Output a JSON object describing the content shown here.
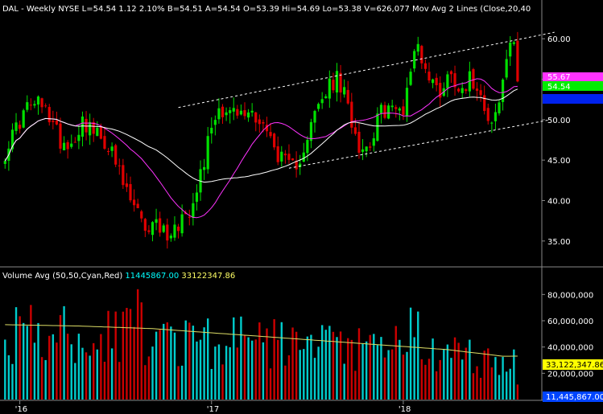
{
  "header": {
    "symbol": "DAL",
    "interval": "Weekly",
    "exchange": "NYSE",
    "last": "L=54.54",
    "change": "1.12",
    "change_pct": "2.10%",
    "bid": "B=54.51",
    "ask": "A=54.54",
    "open": "O=53.39",
    "high": "Hi=54.69",
    "low": "Lo=53.38",
    "volume": "V=626,077",
    "study": "Mov Avg 2 Lines (Close,20,40"
  },
  "volume_header": {
    "label": "Volume Avg (50,50,Cyan,Red)",
    "value_cyan": "11445867.00",
    "value_yellow": "33122347.86"
  },
  "price_tags": [
    {
      "text": "55.67",
      "color": "#ff33ff"
    },
    {
      "text": "54.54",
      "color": "#00ee00"
    },
    {
      "text": "",
      "color": "#0022ee"
    }
  ],
  "volume_tags": [
    {
      "text": "33,122,347.86",
      "color": "#ffff00"
    },
    {
      "text": "11,445,867.00",
      "color": "#0044ff"
    }
  ],
  "colors": {
    "up": "#00e000",
    "down": "#e00000",
    "ma20": "#ff33ff",
    "ma40": "#ffffff",
    "vol_cyan": "#00cccc",
    "vol_red": "#cc0000",
    "vol_avg": "#dddd66",
    "trendline": "#ffffff",
    "header_cyan": "#00ffff",
    "header_yellow": "#ffff66"
  },
  "chart_data": [
    {
      "type": "candlestick",
      "title": "",
      "ylim": [
        32,
        63
      ],
      "yticks": [
        35,
        40,
        45,
        50,
        55,
        60
      ],
      "ytick_labels": [
        "35.00",
        "40.00",
        "45.00",
        "50.00",
        "55.00",
        "60.00"
      ],
      "xticks": [
        {
          "index": 4,
          "label": "'16"
        },
        {
          "index": 56,
          "label": "'17"
        },
        {
          "index": 108,
          "label": "'18"
        }
      ],
      "grid": false,
      "num_bars": 140,
      "anchors": [
        [
          0,
          46.0
        ],
        [
          3,
          49.0
        ],
        [
          6,
          51.5
        ],
        [
          9,
          52.0
        ],
        [
          12,
          50.5
        ],
        [
          15,
          47.5
        ],
        [
          18,
          47.0
        ],
        [
          21,
          50.0
        ],
        [
          24,
          48.5
        ],
        [
          26,
          47.5
        ],
        [
          28,
          47.0
        ],
        [
          30,
          44.5
        ],
        [
          32,
          42.0
        ],
        [
          34,
          40.0
        ],
        [
          36,
          38.5
        ],
        [
          38,
          35.5
        ],
        [
          40,
          38.0
        ],
        [
          42,
          36.5
        ],
        [
          44,
          36.0
        ],
        [
          46,
          36.5
        ],
        [
          48,
          38.0
        ],
        [
          50,
          39.0
        ],
        [
          52,
          42.0
        ],
        [
          54,
          45.0
        ],
        [
          56,
          49.5
        ],
        [
          58,
          51.5
        ],
        [
          61,
          51.0
        ],
        [
          64,
          50.5
        ],
        [
          67,
          51.0
        ],
        [
          70,
          49.5
        ],
        [
          73,
          46.5
        ],
        [
          76,
          44.5
        ],
        [
          78,
          44.0
        ],
        [
          80,
          45.5
        ],
        [
          82,
          48.0
        ],
        [
          84,
          50.5
        ],
        [
          86,
          52.5
        ],
        [
          88,
          54.0
        ],
        [
          90,
          55.0
        ],
        [
          92,
          53.0
        ],
        [
          94,
          50.0
        ],
        [
          96,
          47.0
        ],
        [
          98,
          46.5
        ],
        [
          100,
          48.5
        ],
        [
          102,
          51.0
        ],
        [
          104,
          51.5
        ],
        [
          106,
          51.0
        ],
        [
          108,
          51.5
        ],
        [
          110,
          56.5
        ],
        [
          112,
          59.5
        ],
        [
          114,
          56.0
        ],
        [
          116,
          54.5
        ],
        [
          118,
          53.5
        ],
        [
          120,
          55.5
        ],
        [
          122,
          55.0
        ],
        [
          124,
          54.0
        ],
        [
          126,
          55.0
        ],
        [
          128,
          54.5
        ],
        [
          130,
          52.0
        ],
        [
          132,
          49.5
        ],
        [
          134,
          52.0
        ],
        [
          136,
          57.5
        ],
        [
          137,
          59.5
        ],
        [
          138,
          58.5
        ],
        [
          139,
          55.0
        ],
        [
          140,
          53.0
        ],
        [
          141,
          54.0
        ],
        [
          143,
          54.54
        ]
      ],
      "series": [
        {
          "name": "Mov Avg 20",
          "period": 20,
          "color": "#ff33ff"
        },
        {
          "name": "Mov Avg 40",
          "period": 40,
          "color": "#ffffff"
        }
      ],
      "trendlines": [
        {
          "from": [
            47,
            51.5
          ],
          "to": [
            149,
            60.8
          ]
        },
        {
          "from": [
            77,
            44.0
          ],
          "to": [
            148,
            50.0
          ]
        }
      ]
    },
    {
      "type": "bar",
      "title": "Volume Avg (50,50,Cyan,Red)",
      "ylim": [
        0,
        90000000
      ],
      "yticks": [
        20000000,
        40000000,
        60000000,
        80000000
      ],
      "ytick_labels": [
        "20,000,000",
        "40,000,000",
        "60,000,000",
        "80,000,000"
      ],
      "avg_anchors": [
        [
          0,
          57000000
        ],
        [
          20,
          56000000
        ],
        [
          40,
          54000000
        ],
        [
          60,
          50000000
        ],
        [
          80,
          46000000
        ],
        [
          100,
          42000000
        ],
        [
          120,
          38000000
        ],
        [
          135,
          33000000
        ],
        [
          143,
          33122347
        ]
      ],
      "spikes": [
        [
          36,
          84000000
        ],
        [
          37,
          74000000
        ],
        [
          34,
          69000000
        ],
        [
          30,
          67000000
        ],
        [
          110,
          70000000
        ],
        [
          112,
          67000000
        ],
        [
          106,
          56000000
        ],
        [
          140,
          52000000
        ],
        [
          139,
          46000000
        ],
        [
          54,
          55000000
        ],
        [
          82,
          48000000
        ]
      ]
    }
  ]
}
